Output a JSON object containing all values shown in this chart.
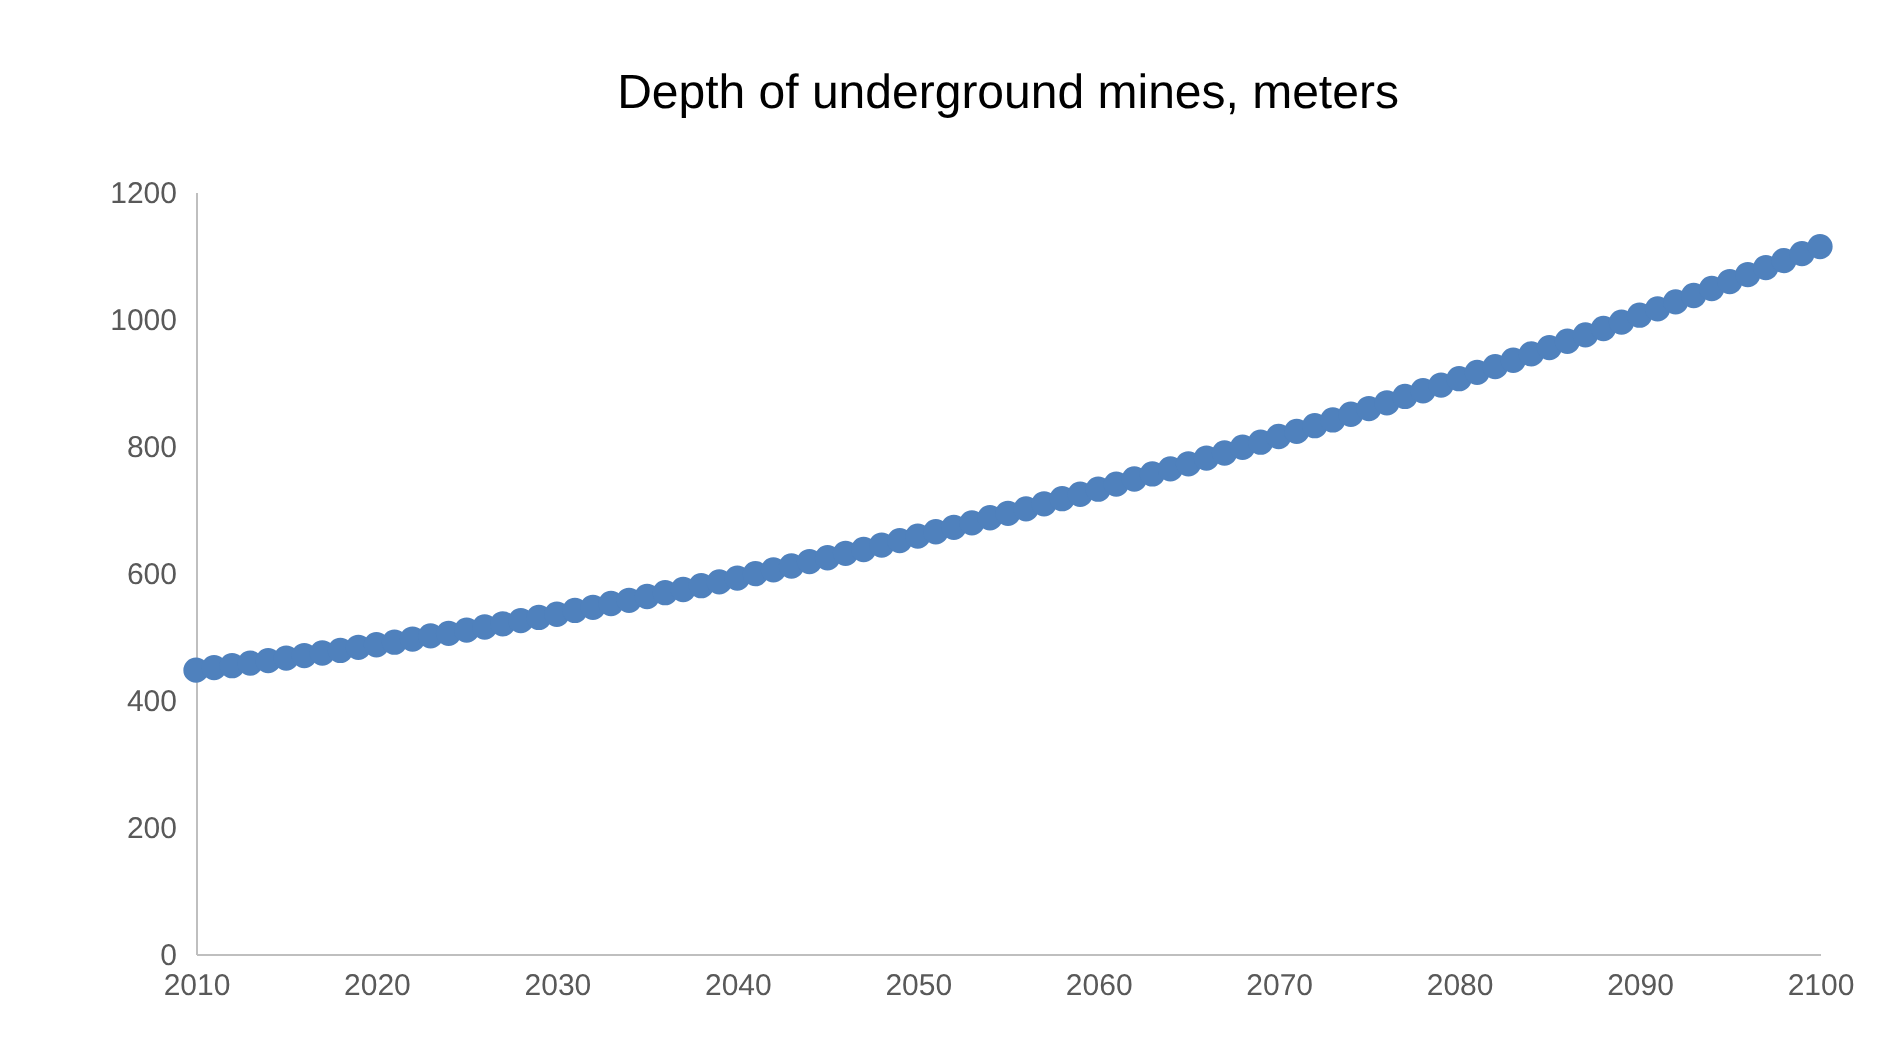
{
  "chart_data": {
    "type": "scatter",
    "title": "Depth of underground mines, meters",
    "marker": "circle",
    "grid": false,
    "x": [
      2010,
      2011,
      2012,
      2013,
      2014,
      2015,
      2016,
      2017,
      2018,
      2019,
      2020,
      2021,
      2022,
      2023,
      2024,
      2025,
      2026,
      2027,
      2028,
      2029,
      2030,
      2031,
      2032,
      2033,
      2034,
      2035,
      2036,
      2037,
      2038,
      2039,
      2040,
      2041,
      2042,
      2043,
      2044,
      2045,
      2046,
      2047,
      2048,
      2049,
      2050,
      2051,
      2052,
      2053,
      2054,
      2055,
      2056,
      2057,
      2058,
      2059,
      2060,
      2061,
      2062,
      2063,
      2064,
      2065,
      2066,
      2067,
      2068,
      2069,
      2070,
      2071,
      2072,
      2073,
      2074,
      2075,
      2076,
      2077,
      2078,
      2079,
      2080,
      2081,
      2082,
      2083,
      2084,
      2085,
      2086,
      2087,
      2088,
      2089,
      2090,
      2091,
      2092,
      2093,
      2094,
      2095,
      2096,
      2097,
      2098,
      2099,
      2100
    ],
    "series": [
      {
        "color": "#4f81bd",
        "values": [
          447,
          451,
          454,
          458,
          462,
          466,
          470,
          474,
          478,
          483,
          487,
          491,
          496,
          501,
          505,
          510,
          515,
          520,
          525,
          530,
          535,
          541,
          546,
          552,
          557,
          563,
          569,
          574,
          580,
          586,
          592,
          599,
          605,
          611,
          618,
          624,
          631,
          637,
          644,
          651,
          658,
          665,
          672,
          679,
          687,
          694,
          701,
          709,
          717,
          724,
          732,
          740,
          748,
          756,
          764,
          772,
          781,
          789,
          798,
          806,
          815,
          823,
          832,
          841,
          850,
          859,
          868,
          878,
          887,
          896,
          906,
          916,
          925,
          935,
          945,
          955,
          965,
          975,
          985,
          995,
          1006,
          1016,
          1027,
          1037,
          1048,
          1059,
          1070,
          1081,
          1092,
          1103,
          1114
        ]
      }
    ],
    "xlim": [
      2010,
      2100
    ],
    "xticks": [
      2010,
      2020,
      2030,
      2040,
      2050,
      2060,
      2070,
      2080,
      2090,
      2100
    ],
    "ylim": [
      0,
      1200
    ],
    "yticks": [
      0,
      200,
      400,
      600,
      800,
      1000,
      1200
    ]
  }
}
